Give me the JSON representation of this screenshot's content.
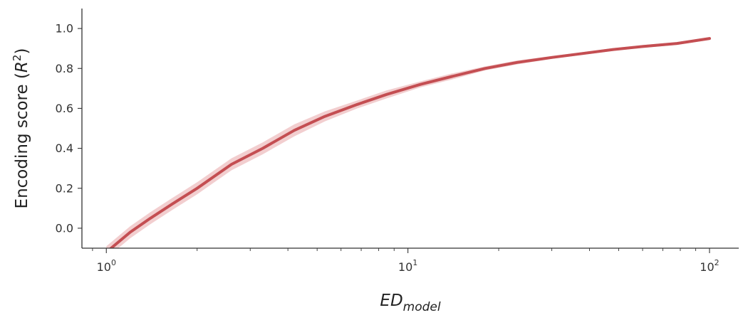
{
  "chart_data": {
    "type": "line",
    "xscale": "log",
    "xlim": [
      0.83,
      125
    ],
    "ylim": [
      -0.1,
      1.1
    ],
    "xticks": [
      1,
      10,
      100
    ],
    "xtick_labels": [
      {
        "base": "10",
        "exp": "0"
      },
      {
        "base": "10",
        "exp": "1"
      },
      {
        "base": "10",
        "exp": "2"
      }
    ],
    "yticks": [
      0.0,
      0.2,
      0.4,
      0.6,
      0.8,
      1.0
    ],
    "ytick_labels": [
      "0.0",
      "0.2",
      "0.4",
      "0.6",
      "0.8",
      "1.0"
    ],
    "xlabel_main": "ED",
    "xlabel_sub": "model",
    "ylabel_pre": "Encoding score (",
    "ylabel_var": "R",
    "ylabel_exp": "2",
    "ylabel_post": ")",
    "grid": false,
    "series": [
      {
        "color": "#c44e52",
        "band_color": "#e8a5a8",
        "x": [
          1.0,
          1.2,
          1.4,
          1.65,
          2.0,
          2.6,
          3.3,
          4.2,
          5.3,
          6.8,
          8.5,
          11,
          14,
          18,
          23,
          30,
          38,
          48,
          60,
          78,
          100
        ],
        "y": [
          -0.12,
          -0.02,
          0.05,
          0.12,
          0.2,
          0.32,
          0.4,
          0.49,
          0.56,
          0.62,
          0.67,
          0.72,
          0.76,
          0.8,
          0.83,
          0.855,
          0.875,
          0.895,
          0.91,
          0.925,
          0.95
        ],
        "y_low": [
          -0.15,
          -0.05,
          0.02,
          0.09,
          0.17,
          0.29,
          0.37,
          0.46,
          0.535,
          0.6,
          0.65,
          0.705,
          0.745,
          0.79,
          0.82,
          0.848,
          0.868,
          0.888,
          0.903,
          0.918,
          0.943
        ],
        "y_high": [
          -0.09,
          0.01,
          0.08,
          0.15,
          0.23,
          0.35,
          0.43,
          0.52,
          0.585,
          0.64,
          0.69,
          0.735,
          0.775,
          0.81,
          0.84,
          0.862,
          0.882,
          0.902,
          0.917,
          0.932,
          0.957
        ]
      }
    ]
  }
}
